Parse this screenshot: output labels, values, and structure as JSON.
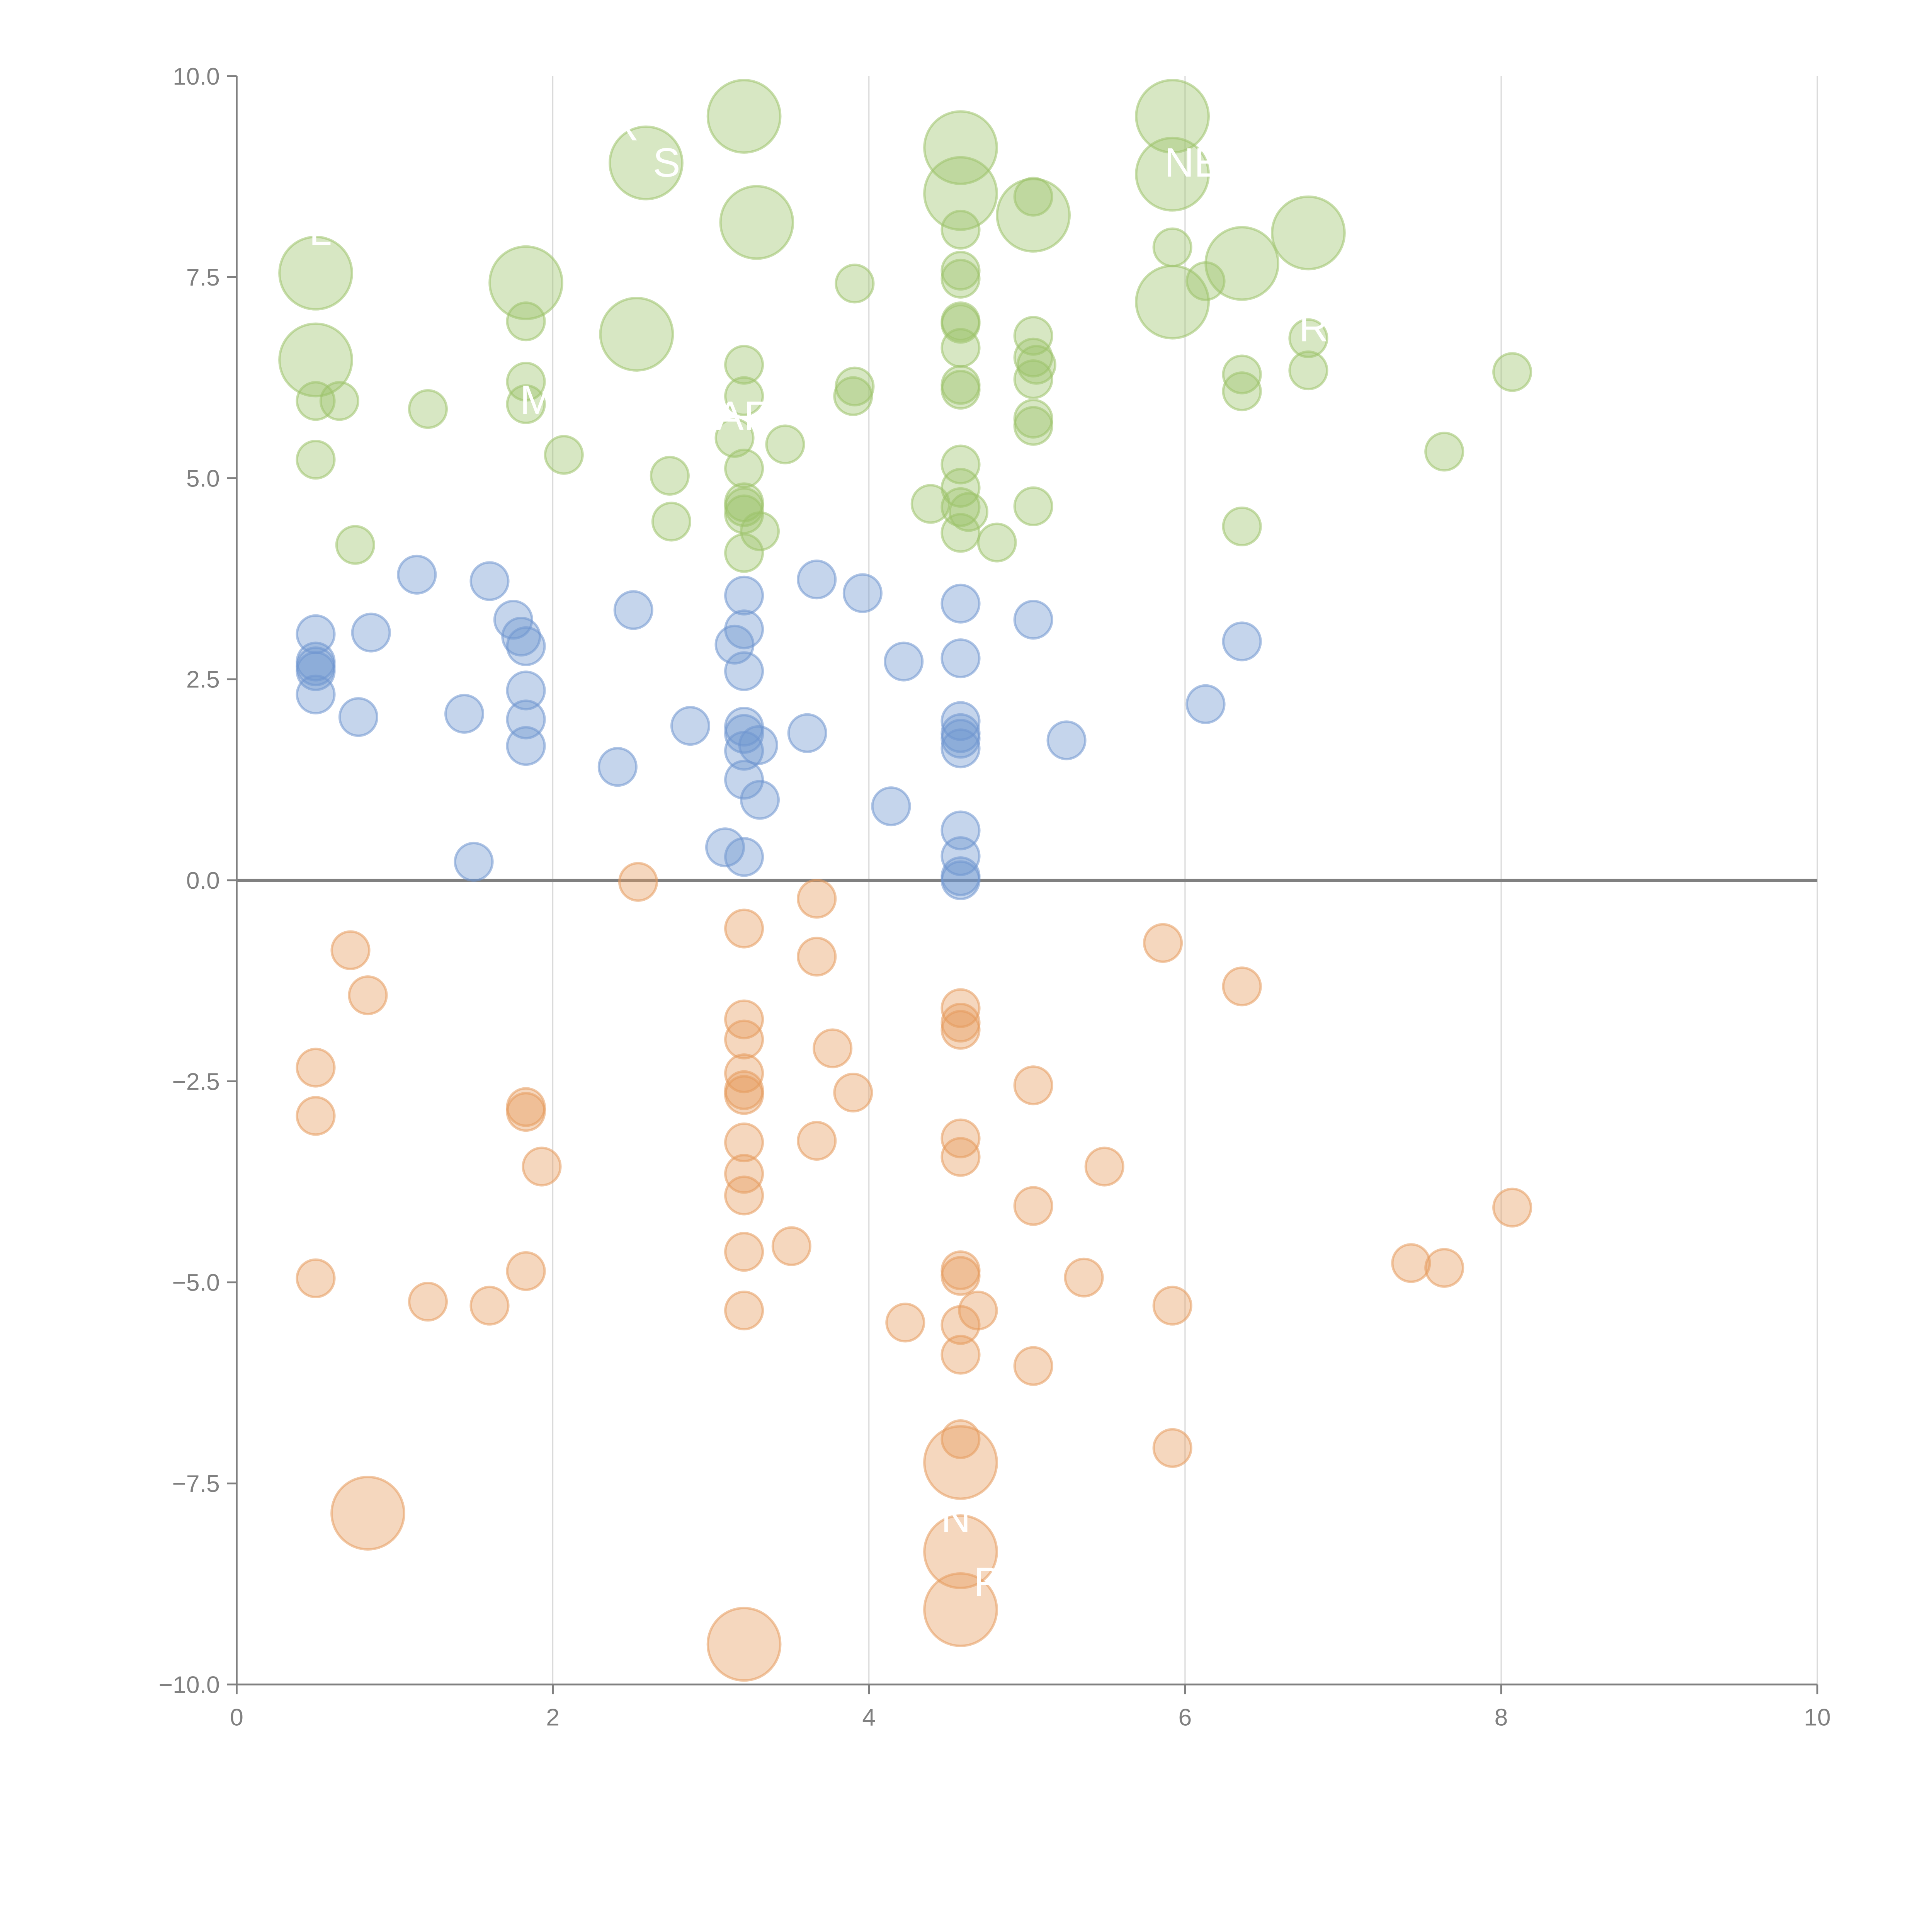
{
  "chart_data": {
    "type": "scatter",
    "title": "",
    "xlabel": "",
    "ylabel": "",
    "xlim": [
      0,
      10
    ],
    "ylim": [
      -10,
      10
    ],
    "x_ticks": [
      "0",
      "2",
      "4",
      "6",
      "8",
      "10"
    ],
    "y_ticks": [
      "10.0",
      "7.5",
      "5.0",
      "2.5",
      "0.0",
      "−2.5",
      "−5.0",
      "−7.5",
      "−10.0"
    ],
    "grid": "vertical at x ticks",
    "reference_line_y": 0,
    "series": [
      {
        "name": "green",
        "color": "#9cc26a",
        "points": [
          [
            0.5,
            7.55,
            3
          ],
          [
            0.5,
            6.47,
            3
          ],
          [
            1.83,
            7.43,
            3
          ],
          [
            2.59,
            8.92,
            3
          ],
          [
            2.53,
            6.79,
            3
          ],
          [
            3.21,
            9.5,
            3
          ],
          [
            3.29,
            8.18,
            3
          ],
          [
            4.58,
            9.11,
            3
          ],
          [
            4.58,
            8.54,
            3
          ],
          [
            5.04,
            8.27,
            3
          ],
          [
            5.92,
            9.5,
            3
          ],
          [
            5.92,
            8.78,
            3
          ],
          [
            5.92,
            7.19,
            3
          ],
          [
            6.36,
            7.67,
            3
          ],
          [
            6.78,
            8.05,
            3
          ],
          [
            0.5,
            5.96,
            1
          ],
          [
            0.65,
            5.96,
            1
          ],
          [
            0.5,
            5.23,
            1
          ],
          [
            0.75,
            4.17,
            1
          ],
          [
            1.21,
            5.86,
            1
          ],
          [
            1.83,
            6.95,
            1
          ],
          [
            1.83,
            6.2,
            1
          ],
          [
            1.83,
            5.92,
            1
          ],
          [
            2.07,
            5.29,
            1
          ],
          [
            2.74,
            5.03,
            1
          ],
          [
            2.75,
            4.46,
            1
          ],
          [
            3.21,
            6.41,
            1
          ],
          [
            3.21,
            6.02,
            1
          ],
          [
            3.15,
            5.5,
            1
          ],
          [
            3.21,
            5.12,
            1
          ],
          [
            3.21,
            4.7,
            1
          ],
          [
            3.21,
            4.64,
            1
          ],
          [
            3.21,
            4.55,
            1
          ],
          [
            3.31,
            4.34,
            1
          ],
          [
            3.21,
            4.07,
            1
          ],
          [
            3.47,
            5.42,
            1
          ],
          [
            3.91,
            7.42,
            1
          ],
          [
            3.91,
            6.14,
            1
          ],
          [
            3.9,
            6.02,
            1
          ],
          [
            4.39,
            4.68,
            1
          ],
          [
            4.58,
            8.09,
            1
          ],
          [
            4.58,
            7.58,
            1
          ],
          [
            4.58,
            7.48,
            1
          ],
          [
            4.58,
            6.95,
            1
          ],
          [
            4.58,
            6.92,
            1
          ],
          [
            4.58,
            6.62,
            1
          ],
          [
            4.58,
            6.16,
            1
          ],
          [
            4.58,
            6.1,
            1
          ],
          [
            4.58,
            5.17,
            1
          ],
          [
            4.58,
            4.88,
            1
          ],
          [
            4.58,
            4.64,
            1
          ],
          [
            4.63,
            4.58,
            1
          ],
          [
            4.58,
            4.32,
            1
          ],
          [
            4.81,
            4.2,
            1
          ],
          [
            5.04,
            8.5,
            1
          ],
          [
            5.04,
            6.77,
            1
          ],
          [
            5.04,
            6.5,
            1
          ],
          [
            5.06,
            6.41,
            1
          ],
          [
            5.04,
            6.23,
            1
          ],
          [
            5.04,
            5.74,
            1
          ],
          [
            5.04,
            5.65,
            1
          ],
          [
            5.04,
            4.65,
            1
          ],
          [
            5.92,
            7.87,
            1
          ],
          [
            6.13,
            7.45,
            1
          ],
          [
            6.36,
            6.29,
            1
          ],
          [
            6.36,
            6.08,
            1
          ],
          [
            6.36,
            4.4,
            1
          ],
          [
            6.78,
            6.74,
            1
          ],
          [
            6.78,
            6.34,
            1
          ],
          [
            7.64,
            5.33,
            1
          ],
          [
            8.07,
            6.32,
            1
          ]
        ]
      },
      {
        "name": "blue",
        "color": "#6f95cf",
        "points": [
          [
            1.14,
            3.8,
            1
          ],
          [
            1.6,
            3.72,
            1
          ],
          [
            0.5,
            3.06,
            1
          ],
          [
            0.85,
            3.08,
            1
          ],
          [
            0.5,
            2.72,
            1
          ],
          [
            0.5,
            2.66,
            1
          ],
          [
            0.5,
            2.6,
            1
          ],
          [
            0.5,
            2.31,
            1
          ],
          [
            0.77,
            2.03,
            1
          ],
          [
            1.75,
            3.24,
            1
          ],
          [
            1.8,
            3.03,
            1
          ],
          [
            1.83,
            2.91,
            1
          ],
          [
            1.83,
            2.36,
            1
          ],
          [
            1.83,
            2.0,
            1
          ],
          [
            1.83,
            1.67,
            1
          ],
          [
            1.44,
            2.07,
            1
          ],
          [
            2.51,
            3.36,
            1
          ],
          [
            2.41,
            1.41,
            1
          ],
          [
            1.5,
            0.23,
            1
          ],
          [
            2.87,
            1.92,
            1
          ],
          [
            3.21,
            3.54,
            1
          ],
          [
            3.21,
            3.12,
            1
          ],
          [
            3.15,
            2.93,
            1
          ],
          [
            3.21,
            2.6,
            1
          ],
          [
            3.21,
            1.91,
            1
          ],
          [
            3.21,
            1.82,
            1
          ],
          [
            3.3,
            1.68,
            1
          ],
          [
            3.21,
            1.61,
            1
          ],
          [
            3.21,
            1.25,
            1
          ],
          [
            3.31,
            1.0,
            1
          ],
          [
            3.09,
            0.41,
            1
          ],
          [
            3.21,
            0.29,
            1
          ],
          [
            3.61,
            1.83,
            1
          ],
          [
            3.67,
            3.74,
            1
          ],
          [
            3.96,
            3.57,
            1
          ],
          [
            4.22,
            2.72,
            1
          ],
          [
            4.14,
            0.92,
            1
          ],
          [
            4.58,
            3.44,
            1
          ],
          [
            4.58,
            2.76,
            1
          ],
          [
            4.58,
            1.98,
            1
          ],
          [
            4.58,
            1.83,
            1
          ],
          [
            4.58,
            1.76,
            1
          ],
          [
            4.58,
            1.64,
            1
          ],
          [
            4.58,
            0.62,
            1
          ],
          [
            4.58,
            0.3,
            1
          ],
          [
            4.58,
            0.05,
            1
          ],
          [
            4.58,
            0.0,
            1
          ],
          [
            5.04,
            3.24,
            1
          ],
          [
            5.25,
            1.74,
            1
          ],
          [
            6.13,
            2.19,
            1
          ],
          [
            6.36,
            2.97,
            1
          ]
        ]
      },
      {
        "name": "orange",
        "color": "#e69a5c",
        "points": [
          [
            2.54,
            -0.02,
            1
          ],
          [
            0.72,
            -0.87,
            1
          ],
          [
            0.83,
            -1.43,
            1
          ],
          [
            0.5,
            -2.33,
            1
          ],
          [
            0.5,
            -2.93,
            1
          ],
          [
            0.5,
            -4.95,
            1
          ],
          [
            1.21,
            -5.24,
            1
          ],
          [
            1.6,
            -5.29,
            1
          ],
          [
            1.83,
            -2.82,
            1
          ],
          [
            1.83,
            -2.88,
            1
          ],
          [
            1.93,
            -3.56,
            1
          ],
          [
            1.83,
            -4.86,
            1
          ],
          [
            3.21,
            -0.6,
            1
          ],
          [
            3.21,
            -1.73,
            1
          ],
          [
            3.21,
            -1.98,
            1
          ],
          [
            3.21,
            -2.4,
            1
          ],
          [
            3.21,
            -2.61,
            1
          ],
          [
            3.21,
            -2.67,
            1
          ],
          [
            3.21,
            -3.26,
            1
          ],
          [
            3.21,
            -3.65,
            1
          ],
          [
            3.21,
            -3.92,
            1
          ],
          [
            3.21,
            -4.62,
            1
          ],
          [
            3.21,
            -5.35,
            1
          ],
          [
            3.51,
            -4.55,
            1
          ],
          [
            3.67,
            -0.23,
            1
          ],
          [
            3.67,
            -0.95,
            1
          ],
          [
            3.77,
            -2.09,
            1
          ],
          [
            3.9,
            -2.64,
            1
          ],
          [
            3.67,
            -3.24,
            1
          ],
          [
            4.23,
            -5.5,
            1
          ],
          [
            4.58,
            -1.59,
            1
          ],
          [
            4.58,
            -1.77,
            1
          ],
          [
            4.58,
            -1.86,
            1
          ],
          [
            4.58,
            -3.21,
            1
          ],
          [
            4.58,
            -3.44,
            1
          ],
          [
            4.58,
            -4.85,
            1
          ],
          [
            4.58,
            -4.92,
            1
          ],
          [
            4.69,
            -5.35,
            1
          ],
          [
            4.58,
            -5.53,
            1
          ],
          [
            4.58,
            -5.9,
            1
          ],
          [
            4.58,
            -6.95,
            1
          ],
          [
            5.04,
            -2.55,
            1
          ],
          [
            5.04,
            -4.05,
            1
          ],
          [
            5.04,
            -6.04,
            1
          ],
          [
            5.36,
            -4.94,
            1
          ],
          [
            5.49,
            -3.56,
            1
          ],
          [
            5.86,
            -0.78,
            1
          ],
          [
            5.92,
            -5.29,
            1
          ],
          [
            5.92,
            -7.06,
            1
          ],
          [
            6.36,
            -1.32,
            1
          ],
          [
            7.43,
            -4.76,
            1
          ],
          [
            7.64,
            -4.82,
            1
          ],
          [
            8.07,
            -4.07,
            1
          ],
          [
            0.83,
            -7.87,
            3
          ],
          [
            4.58,
            -7.24,
            3
          ],
          [
            4.58,
            -8.35,
            3
          ],
          [
            4.58,
            -9.07,
            3
          ],
          [
            3.21,
            -9.5,
            3
          ]
        ]
      }
    ],
    "annotations": [
      {
        "text": "L",
        "x": 0.53,
        "y": 7.9
      },
      {
        "text": "R",
        "x": 2.45,
        "y": 9.2
      },
      {
        "text": "S",
        "x": 2.72,
        "y": 8.75
      },
      {
        "text": "NE",
        "x": 6.05,
        "y": 8.75
      },
      {
        "text": "RI",
        "x": 6.85,
        "y": 6.7
      },
      {
        "text": "M",
        "x": 1.9,
        "y": 5.8
      },
      {
        "text": "AF",
        "x": 3.2,
        "y": 5.6
      },
      {
        "text": "N",
        "x": 4.55,
        "y": -8.1
      },
      {
        "text": "P",
        "x": 4.75,
        "y": -8.9
      }
    ]
  }
}
